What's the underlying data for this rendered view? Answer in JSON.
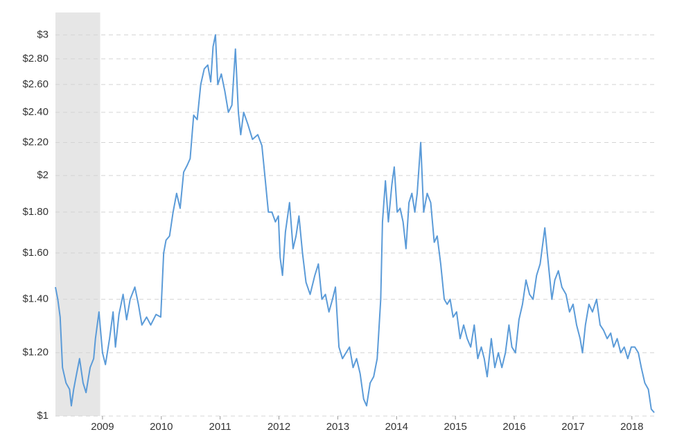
{
  "chart_data": {
    "type": "line",
    "x": [
      2008.2,
      2008.24,
      2008.28,
      2008.32,
      2008.38,
      2008.44,
      2008.47,
      2008.51,
      2008.55,
      2008.61,
      2008.67,
      2008.72,
      2008.79,
      2008.85,
      2008.88,
      2008.94,
      2009.0,
      2009.05,
      2009.12,
      2009.18,
      2009.22,
      2009.28,
      2009.35,
      2009.41,
      2009.47,
      2009.55,
      2009.61,
      2009.67,
      2009.75,
      2009.82,
      2009.91,
      2009.99,
      2010.04,
      2010.08,
      2010.14,
      2010.2,
      2010.26,
      2010.32,
      2010.38,
      2010.44,
      2010.49,
      2010.55,
      2010.61,
      2010.67,
      2010.73,
      2010.79,
      2010.84,
      2010.88,
      2010.92,
      2010.96,
      2011.02,
      2011.08,
      2011.14,
      2011.2,
      2011.26,
      2011.31,
      2011.35,
      2011.4,
      2011.47,
      2011.55,
      2011.64,
      2011.71,
      2011.76,
      2011.82,
      2011.88,
      2011.94,
      2011.99,
      2012.02,
      2012.06,
      2012.11,
      2012.18,
      2012.24,
      2012.29,
      2012.34,
      2012.4,
      2012.46,
      2012.53,
      2012.61,
      2012.67,
      2012.73,
      2012.79,
      2012.85,
      2012.91,
      2012.96,
      2013.02,
      2013.08,
      2013.14,
      2013.2,
      2013.26,
      2013.32,
      2013.38,
      2013.44,
      2013.49,
      2013.55,
      2013.61,
      2013.67,
      2013.73,
      2013.76,
      2013.81,
      2013.86,
      2013.92,
      2013.96,
      2014.01,
      2014.06,
      2014.11,
      2014.16,
      2014.21,
      2014.26,
      2014.31,
      2014.35,
      2014.41,
      2014.46,
      2014.52,
      2014.58,
      2014.64,
      2014.69,
      2014.75,
      2014.81,
      2014.86,
      2014.91,
      2014.96,
      2015.02,
      2015.08,
      2015.14,
      2015.2,
      2015.26,
      2015.32,
      2015.38,
      2015.44,
      2015.49,
      2015.54,
      2015.61,
      2015.67,
      2015.73,
      2015.79,
      2015.85,
      2015.91,
      2015.96,
      2016.02,
      2016.08,
      2016.14,
      2016.2,
      2016.26,
      2016.32,
      2016.38,
      2016.44,
      2016.52,
      2016.58,
      2016.64,
      2016.69,
      2016.75,
      2016.81,
      2016.88,
      2016.94,
      2017.0,
      2017.06,
      2017.12,
      2017.16,
      2017.21,
      2017.27,
      2017.33,
      2017.4,
      2017.46,
      2017.52,
      2017.58,
      2017.64,
      2017.69,
      2017.75,
      2017.81,
      2017.87,
      2017.93,
      2017.99,
      2018.05,
      2018.11,
      2018.16,
      2018.22,
      2018.28,
      2018.33,
      2018.38
    ],
    "values": [
      1.45,
      1.4,
      1.33,
      1.15,
      1.1,
      1.08,
      1.03,
      1.08,
      1.12,
      1.18,
      1.1,
      1.07,
      1.15,
      1.18,
      1.25,
      1.35,
      1.2,
      1.16,
      1.25,
      1.35,
      1.22,
      1.34,
      1.42,
      1.32,
      1.4,
      1.45,
      1.38,
      1.3,
      1.33,
      1.3,
      1.34,
      1.33,
      1.6,
      1.66,
      1.68,
      1.8,
      1.9,
      1.82,
      2.02,
      2.06,
      2.1,
      2.38,
      2.35,
      2.6,
      2.72,
      2.75,
      2.62,
      2.9,
      3.0,
      2.6,
      2.68,
      2.55,
      2.4,
      2.45,
      2.88,
      2.4,
      2.25,
      2.4,
      2.32,
      2.22,
      2.25,
      2.18,
      2.0,
      1.8,
      1.8,
      1.75,
      1.78,
      1.58,
      1.5,
      1.7,
      1.85,
      1.62,
      1.68,
      1.78,
      1.6,
      1.47,
      1.42,
      1.5,
      1.55,
      1.4,
      1.42,
      1.35,
      1.4,
      1.45,
      1.22,
      1.18,
      1.2,
      1.22,
      1.15,
      1.18,
      1.13,
      1.05,
      1.03,
      1.1,
      1.12,
      1.18,
      1.4,
      1.75,
      1.97,
      1.75,
      1.95,
      2.05,
      1.8,
      1.82,
      1.75,
      1.62,
      1.85,
      1.9,
      1.8,
      1.9,
      2.2,
      1.8,
      1.9,
      1.85,
      1.65,
      1.68,
      1.55,
      1.4,
      1.38,
      1.4,
      1.33,
      1.35,
      1.25,
      1.3,
      1.25,
      1.22,
      1.3,
      1.18,
      1.22,
      1.18,
      1.12,
      1.25,
      1.15,
      1.2,
      1.15,
      1.2,
      1.3,
      1.22,
      1.2,
      1.32,
      1.38,
      1.48,
      1.42,
      1.4,
      1.5,
      1.55,
      1.72,
      1.55,
      1.4,
      1.48,
      1.52,
      1.45,
      1.42,
      1.35,
      1.38,
      1.3,
      1.25,
      1.2,
      1.3,
      1.38,
      1.35,
      1.4,
      1.3,
      1.28,
      1.25,
      1.27,
      1.22,
      1.25,
      1.2,
      1.22,
      1.18,
      1.22,
      1.22,
      1.2,
      1.15,
      1.1,
      1.08,
      1.02,
      1.01
    ],
    "color": "#5b9bd8",
    "xlim": [
      2008.2,
      2018.45
    ],
    "xticks": [
      2009,
      2010,
      2011,
      2012,
      2013,
      2014,
      2015,
      2016,
      2017,
      2018
    ],
    "ylim": [
      1,
      3.2
    ],
    "yticks": [
      {
        "value": 1,
        "label": "$1"
      },
      {
        "value": 1.2,
        "label": "$1.20"
      },
      {
        "value": 1.4,
        "label": "$1.40"
      },
      {
        "value": 1.6,
        "label": "$1.60"
      },
      {
        "value": 1.8,
        "label": "$1.80"
      },
      {
        "value": 2,
        "label": "$2"
      },
      {
        "value": 2.2,
        "label": "$2.20"
      },
      {
        "value": 2.4,
        "label": "$2.40"
      },
      {
        "value": 2.6,
        "label": "$2.60"
      },
      {
        "value": 2.8,
        "label": "$2.80"
      },
      {
        "value": 3,
        "label": "$3"
      }
    ],
    "log_scale_y": true,
    "grid": true,
    "shaded_region": {
      "x": [
        2008.2,
        2008.96
      ],
      "color": "#e6e6e6"
    }
  }
}
